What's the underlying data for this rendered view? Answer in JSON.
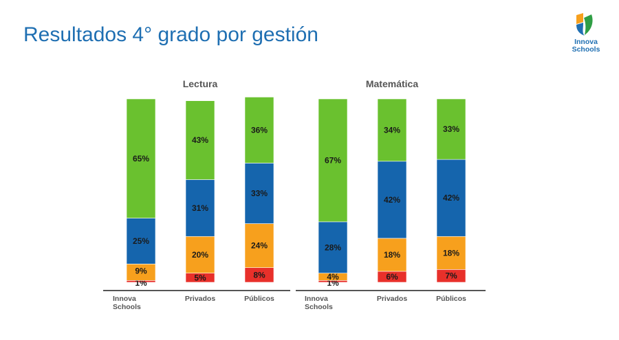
{
  "slide": {
    "title": "Resultados 4° grado por gestión"
  },
  "logo": {
    "line1": "Innova",
    "line2": "Schools"
  },
  "colors": {
    "title": "#1f6fb2",
    "segments": [
      "#e8302a",
      "#f7a01d",
      "#1565ad",
      "#6ac12f"
    ]
  },
  "chart_data": [
    {
      "type": "bar",
      "stacked": true,
      "title": "Lectura",
      "categories": [
        "Innova\nSchools",
        "Privados",
        "Públicos"
      ],
      "series": [
        {
          "values": [
            1,
            5,
            8
          ],
          "labels": [
            "1%",
            "5%",
            "8%"
          ]
        },
        {
          "values": [
            9,
            20,
            24
          ],
          "labels": [
            "9%",
            "20%",
            "24%"
          ]
        },
        {
          "values": [
            25,
            31,
            33
          ],
          "labels": [
            "25%",
            "31%",
            "33%"
          ]
        },
        {
          "values": [
            65,
            43,
            36
          ],
          "labels": [
            "65%",
            "43%",
            "36%"
          ]
        }
      ],
      "ylim": [
        0,
        100
      ]
    },
    {
      "type": "bar",
      "stacked": true,
      "title": "Matemática",
      "categories": [
        "Innova\nSchools",
        "Privados",
        "Públicos"
      ],
      "series": [
        {
          "values": [
            1,
            6,
            7
          ],
          "labels": [
            "1%",
            "6%",
            "7%"
          ]
        },
        {
          "values": [
            4,
            18,
            18
          ],
          "labels": [
            "4%",
            "18%",
            "18%"
          ]
        },
        {
          "values": [
            28,
            42,
            42
          ],
          "labels": [
            "28%",
            "42%",
            "42%"
          ]
        },
        {
          "values": [
            67,
            34,
            33
          ],
          "labels": [
            "67%",
            "34%",
            "33%"
          ]
        }
      ],
      "ylim": [
        0,
        100
      ]
    }
  ]
}
